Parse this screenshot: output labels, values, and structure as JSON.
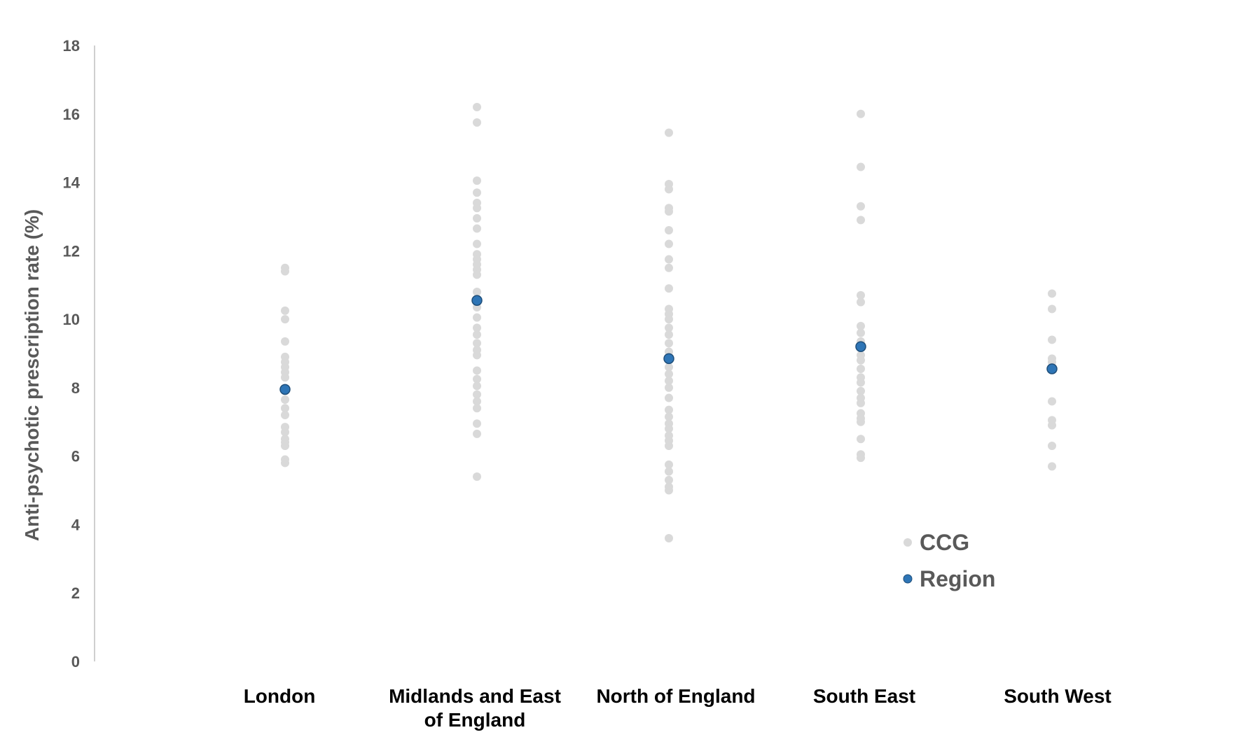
{
  "chart_data": {
    "type": "scatter",
    "title": "",
    "xlabel": "",
    "ylabel": "Anti-psychotic prescription rate (%)",
    "ylim": [
      0,
      18
    ],
    "yticks": [
      0,
      2,
      4,
      6,
      8,
      10,
      12,
      14,
      16,
      18
    ],
    "grid": false,
    "legend_position": "lower-right inside plot",
    "categories": [
      [
        "London"
      ],
      [
        "Midlands and East",
        "of England"
      ],
      [
        "North of England"
      ],
      [
        "South East"
      ],
      [
        "South West"
      ]
    ],
    "series": [
      {
        "name": "CCG",
        "color": "#d9d9d9",
        "points": [
          [
            [
              11.5,
              11.4,
              10.25,
              10.0,
              9.35,
              8.9,
              8.75,
              8.6,
              8.45,
              8.3,
              7.9,
              7.65,
              7.4,
              7.2,
              6.85,
              6.7,
              6.5,
              6.4,
              6.3,
              5.9,
              5.8
            ]
          ],
          [
            [
              16.2,
              15.75,
              14.05,
              13.7,
              13.4,
              13.25,
              12.95,
              12.65,
              12.2,
              11.9,
              11.75,
              11.6,
              11.45,
              11.3,
              10.8,
              10.6,
              10.35,
              10.05,
              9.75,
              9.55,
              9.3,
              9.1,
              8.95,
              8.5,
              8.25,
              8.05,
              7.8,
              7.6,
              7.4,
              6.95,
              6.65,
              5.4
            ]
          ],
          [
            [
              15.45,
              13.95,
              13.8,
              13.25,
              13.15,
              12.6,
              12.2,
              11.75,
              11.5,
              10.9,
              10.3,
              10.15,
              10.0,
              9.75,
              9.55,
              9.3,
              9.05,
              8.85,
              8.6,
              8.4,
              8.2,
              8.0,
              7.7,
              7.35,
              7.15,
              6.95,
              6.8,
              6.6,
              6.45,
              6.3,
              5.75,
              5.55,
              5.3,
              5.1,
              5.0,
              3.6
            ]
          ],
          [
            [
              16.0,
              14.45,
              13.3,
              12.9,
              10.7,
              10.5,
              9.8,
              9.6,
              9.35,
              8.95,
              8.8,
              8.55,
              8.3,
              8.15,
              7.9,
              7.7,
              7.55,
              7.25,
              7.1,
              7.0,
              6.5,
              6.05,
              5.95
            ]
          ],
          [
            [
              10.75,
              10.3,
              9.4,
              8.85,
              8.75,
              7.6,
              7.05,
              6.9,
              6.3,
              5.7
            ]
          ]
        ]
      },
      {
        "name": "Region",
        "color": "#2e75b6",
        "values": [
          7.95,
          10.55,
          8.85,
          9.2,
          8.55
        ]
      }
    ]
  }
}
